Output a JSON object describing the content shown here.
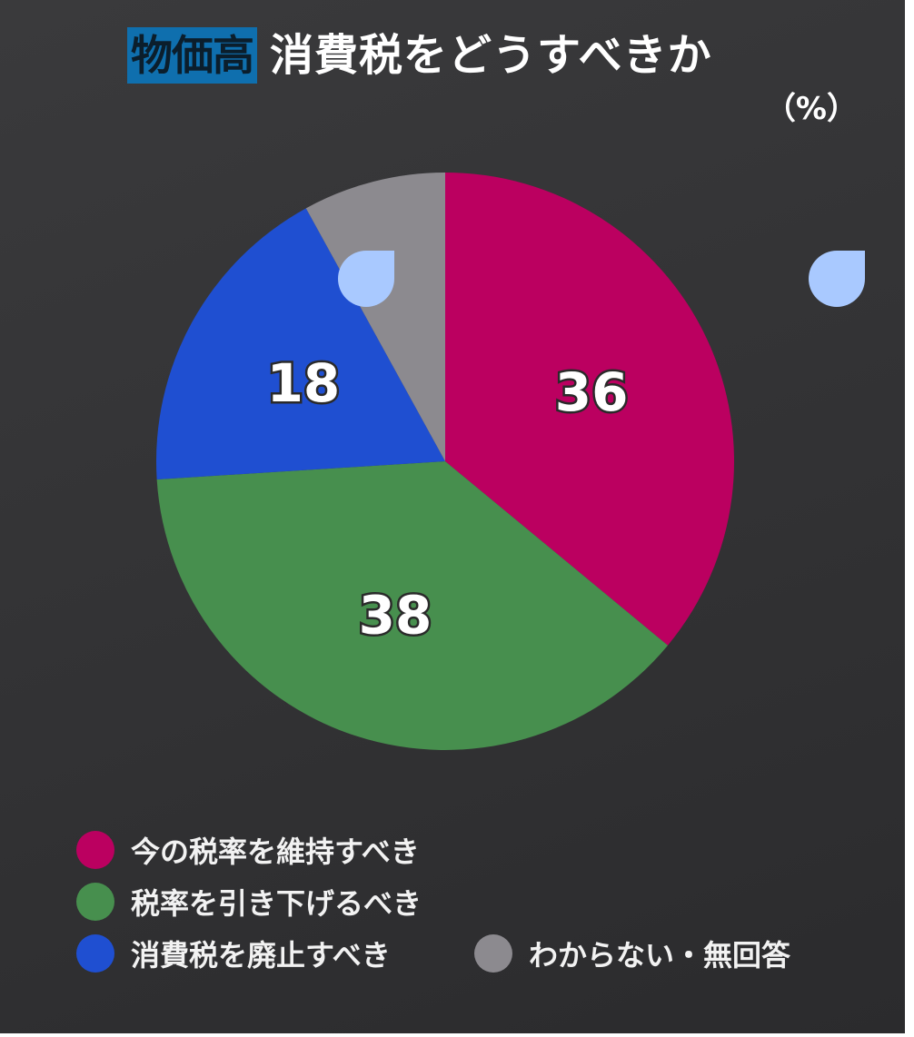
{
  "header": {
    "tag": "物価高",
    "title": "消費税をどうすべきか",
    "unit": "（%）"
  },
  "chart_data": {
    "type": "pie",
    "title": "消費税をどうすべきか",
    "unit": "%",
    "start_angle": "12 o'clock, clockwise",
    "slices": [
      {
        "label": "今の税率を維持すべき",
        "value": 36,
        "color": "#bb0060",
        "show_label": true
      },
      {
        "label": "税率を引き下げるべき",
        "value": 38,
        "color": "#478f4e",
        "show_label": true
      },
      {
        "label": "消費税を廃止すべき",
        "value": 18,
        "color": "#1f4fd1",
        "show_label": true
      },
      {
        "label": "わからない・無回答",
        "value": 8,
        "color": "#8c8a8f",
        "show_label": false
      }
    ],
    "legend_position": "bottom"
  },
  "decorations": {
    "marker_color": "#a9c9ff"
  }
}
